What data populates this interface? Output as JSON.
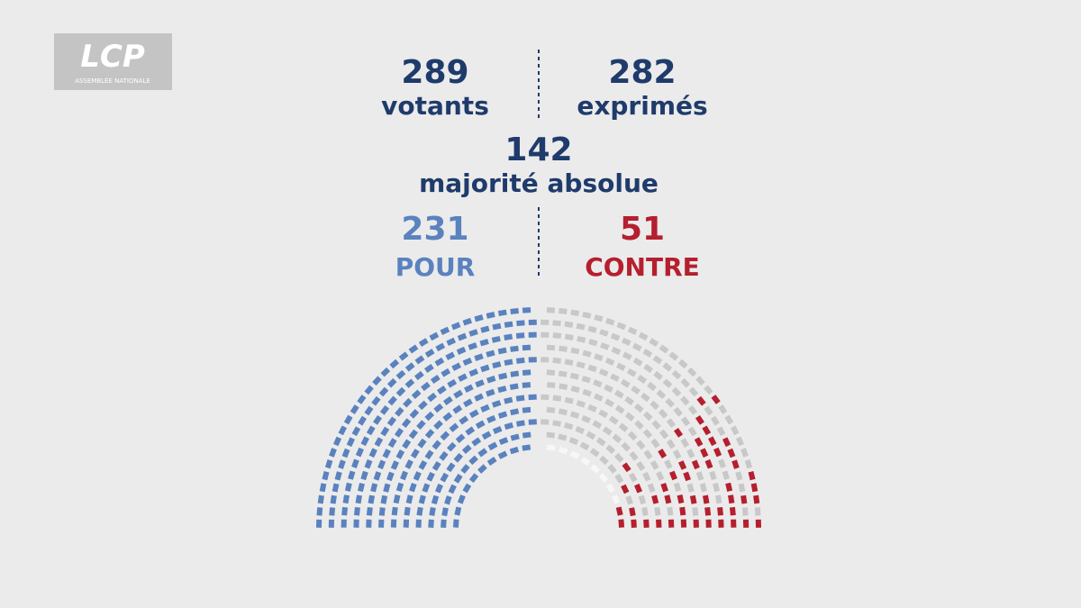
{
  "logo": {
    "name": "LCP",
    "subtitle": "ASSEMBLÉE NATIONALE"
  },
  "totals": {
    "votants": {
      "value": 289,
      "label": "votants"
    },
    "exprimes": {
      "value": 282,
      "label": "exprimés"
    },
    "majorite": {
      "value": 142,
      "label": "majorité absolue"
    }
  },
  "votes": {
    "pour": {
      "value": 231,
      "label": "POUR"
    },
    "contre": {
      "value": 51,
      "label": "CONTRE"
    }
  }
}
